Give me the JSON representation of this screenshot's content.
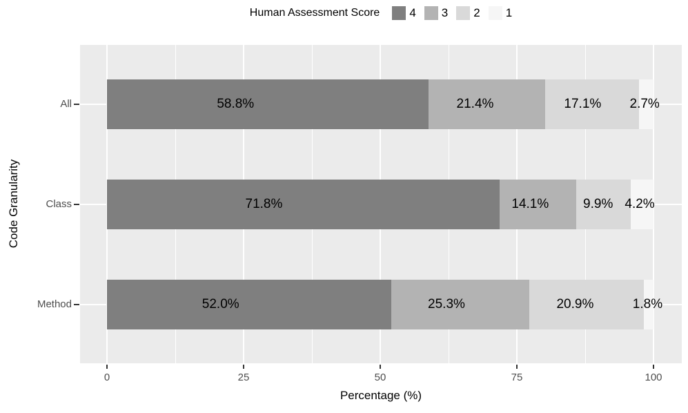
{
  "chart_data": {
    "type": "bar",
    "orientation": "horizontal",
    "stacked": true,
    "legend_title": "Human Assessment Score",
    "legend_position": "top",
    "xlabel": "Percentage (%)",
    "ylabel": "Code Granularity",
    "xlim": [
      0,
      100
    ],
    "x_ticks": [
      0,
      25,
      50,
      75,
      100
    ],
    "x_minor_ticks": [
      12.5,
      37.5,
      62.5,
      87.5
    ],
    "grid": true,
    "categories": [
      "All",
      "Class",
      "Method"
    ],
    "series": [
      {
        "name": "4",
        "color": "#7f7f7f",
        "values": [
          58.8,
          71.8,
          52.0
        ]
      },
      {
        "name": "3",
        "color": "#b3b3b3",
        "values": [
          21.4,
          14.1,
          25.3
        ]
      },
      {
        "name": "2",
        "color": "#d9d9d9",
        "values": [
          17.1,
          9.9,
          20.9
        ]
      },
      {
        "name": "1",
        "color": "#f6f6f6",
        "values": [
          2.7,
          4.2,
          1.8
        ]
      }
    ],
    "bar_labels": [
      [
        "58.8%",
        "21.4%",
        "17.1%",
        "2.7%"
      ],
      [
        "71.8%",
        "14.1%",
        "9.9%",
        "4.2%"
      ],
      [
        "52.0%",
        "25.3%",
        "20.9%",
        "1.8%"
      ]
    ]
  },
  "colors": {
    "panel_background": "#ebebeb",
    "gridline": "#ffffff",
    "tick_label": "#4d4d4d",
    "axis_title": "#000000",
    "bar_label": "#000000",
    "tick_mark": "#333333"
  }
}
